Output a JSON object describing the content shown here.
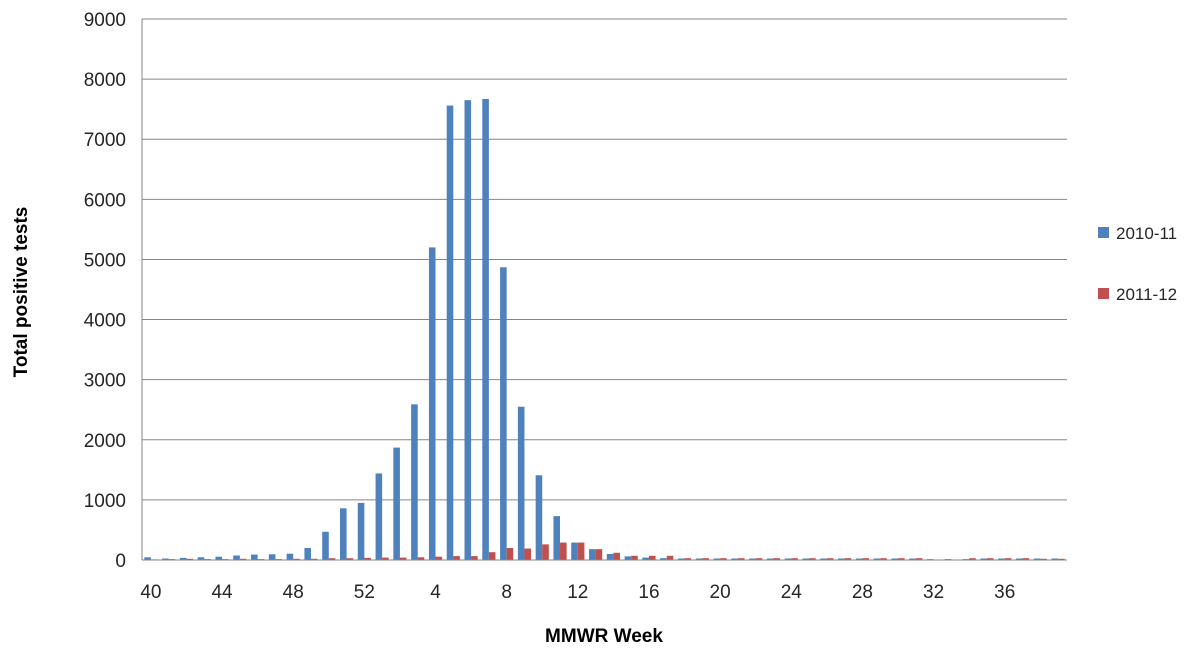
{
  "chart_data": {
    "type": "bar",
    "xlabel": "MMWR Week",
    "ylabel": "Total positive tests",
    "ylim": [
      0,
      9000
    ],
    "yticks": [
      "0",
      "1000",
      "2000",
      "3000",
      "4000",
      "5000",
      "6000",
      "7000",
      "8000",
      "9000"
    ],
    "grid": true,
    "legend_position": "right",
    "x_tick_labels": [
      "40",
      "44",
      "48",
      "52",
      "4",
      "8",
      "12",
      "16",
      "20",
      "24",
      "28",
      "32",
      "36"
    ],
    "categories": [
      "40",
      "41",
      "42",
      "43",
      "44",
      "45",
      "46",
      "47",
      "48",
      "49",
      "50",
      "51",
      "52",
      "1",
      "2",
      "3",
      "4",
      "5",
      "6",
      "7",
      "8",
      "9",
      "10",
      "11",
      "12",
      "13",
      "14",
      "15",
      "16",
      "17",
      "18",
      "19",
      "20",
      "21",
      "22",
      "23",
      "24",
      "25",
      "26",
      "27",
      "28",
      "29",
      "30",
      "31",
      "32",
      "33",
      "34",
      "35",
      "36",
      "37",
      "38",
      "39"
    ],
    "series": [
      {
        "name": "2010-11",
        "color": "#4f81bd",
        "values": [
          45,
          25,
          35,
          45,
          55,
          75,
          90,
          95,
          105,
          200,
          470,
          860,
          950,
          1440,
          1870,
          2590,
          5200,
          7560,
          7650,
          7670,
          4870,
          2550,
          1410,
          730,
          290,
          180,
          100,
          60,
          40,
          30,
          25,
          25,
          25,
          25,
          25,
          25,
          25,
          25,
          25,
          25,
          25,
          25,
          25,
          25,
          15,
          15,
          15,
          25,
          25,
          25,
          25,
          25
        ]
      },
      {
        "name": "2011-12",
        "color": "#c0504d",
        "values": [
          10,
          15,
          20,
          15,
          15,
          20,
          15,
          15,
          20,
          20,
          30,
          30,
          35,
          40,
          40,
          45,
          55,
          65,
          65,
          130,
          200,
          190,
          260,
          290,
          290,
          180,
          120,
          70,
          70,
          70,
          30,
          30,
          30,
          30,
          30,
          30,
          30,
          30,
          30,
          30,
          30,
          30,
          30,
          30,
          5,
          5,
          30,
          30,
          30,
          30,
          20,
          20
        ]
      }
    ]
  }
}
